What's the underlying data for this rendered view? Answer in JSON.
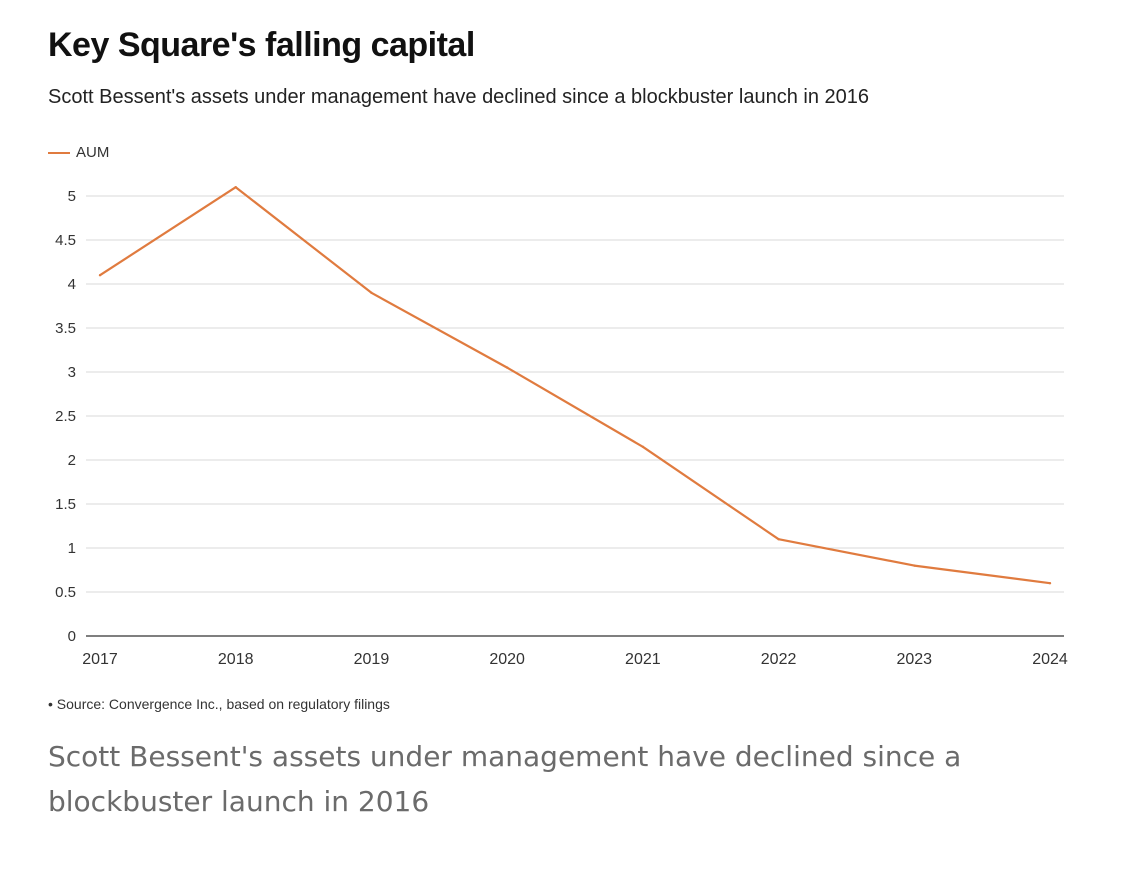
{
  "colors": {
    "line": "#e07b3f",
    "grid": "#d9d9d9",
    "axis": "#333333"
  },
  "chart_data": {
    "type": "line",
    "title": "Key Square's falling capital",
    "subtitle": "Scott Bessent's assets under management have declined since a blockbuster launch in 2016",
    "xlabel": "",
    "ylabel": "",
    "categories": [
      "2017",
      "2018",
      "2019",
      "2020",
      "2021",
      "2022",
      "2023",
      "2024"
    ],
    "series": [
      {
        "name": "AUM",
        "values": [
          4.1,
          5.1,
          3.9,
          3.05,
          2.15,
          1.1,
          0.8,
          0.6
        ]
      }
    ],
    "y_ticks": [
      "0",
      "0.5",
      "1",
      "1.5",
      "2",
      "2.5",
      "3",
      "3.5",
      "4",
      "4.5",
      "5"
    ],
    "ylim": [
      0,
      5
    ],
    "grid": true,
    "legend": "top-left"
  },
  "source_note": "Source: Convergence Inc., based on regulatory filings",
  "source_bullet": "•",
  "caption": "Scott Bessent's assets under management have declined since a blockbuster launch in 2016"
}
